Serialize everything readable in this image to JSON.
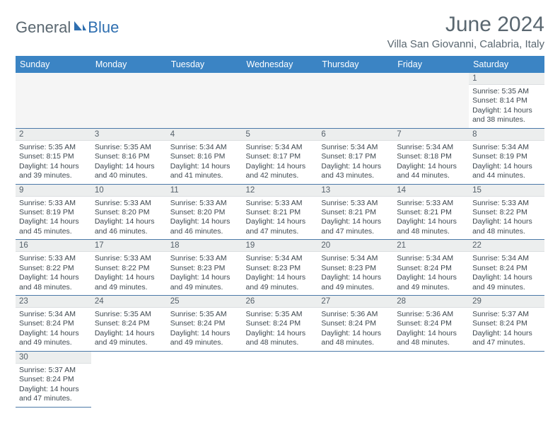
{
  "logo": {
    "part1": "General",
    "part2": "Blue"
  },
  "header": {
    "title": "June 2024",
    "location": "Villa San Giovanni, Calabria, Italy"
  },
  "colors": {
    "header_bg": "#3b84c4",
    "header_text": "#ffffff",
    "daynum_bg": "#eceeee",
    "daynum_text": "#55606a",
    "body_text": "#3e4850",
    "rule": "#4b79a8",
    "logo_gray": "#5a6770",
    "logo_blue": "#2f6fb0"
  },
  "week_headers": [
    "Sunday",
    "Monday",
    "Tuesday",
    "Wednesday",
    "Thursday",
    "Friday",
    "Saturday"
  ],
  "first_day_slot": 6,
  "days": [
    {
      "n": "1",
      "sunrise": "5:35 AM",
      "sunset": "8:14 PM",
      "daylight": "14 hours and 38 minutes."
    },
    {
      "n": "2",
      "sunrise": "5:35 AM",
      "sunset": "8:15 PM",
      "daylight": "14 hours and 39 minutes."
    },
    {
      "n": "3",
      "sunrise": "5:35 AM",
      "sunset": "8:16 PM",
      "daylight": "14 hours and 40 minutes."
    },
    {
      "n": "4",
      "sunrise": "5:34 AM",
      "sunset": "8:16 PM",
      "daylight": "14 hours and 41 minutes."
    },
    {
      "n": "5",
      "sunrise": "5:34 AM",
      "sunset": "8:17 PM",
      "daylight": "14 hours and 42 minutes."
    },
    {
      "n": "6",
      "sunrise": "5:34 AM",
      "sunset": "8:17 PM",
      "daylight": "14 hours and 43 minutes."
    },
    {
      "n": "7",
      "sunrise": "5:34 AM",
      "sunset": "8:18 PM",
      "daylight": "14 hours and 44 minutes."
    },
    {
      "n": "8",
      "sunrise": "5:34 AM",
      "sunset": "8:19 PM",
      "daylight": "14 hours and 44 minutes."
    },
    {
      "n": "9",
      "sunrise": "5:33 AM",
      "sunset": "8:19 PM",
      "daylight": "14 hours and 45 minutes."
    },
    {
      "n": "10",
      "sunrise": "5:33 AM",
      "sunset": "8:20 PM",
      "daylight": "14 hours and 46 minutes."
    },
    {
      "n": "11",
      "sunrise": "5:33 AM",
      "sunset": "8:20 PM",
      "daylight": "14 hours and 46 minutes."
    },
    {
      "n": "12",
      "sunrise": "5:33 AM",
      "sunset": "8:21 PM",
      "daylight": "14 hours and 47 minutes."
    },
    {
      "n": "13",
      "sunrise": "5:33 AM",
      "sunset": "8:21 PM",
      "daylight": "14 hours and 47 minutes."
    },
    {
      "n": "14",
      "sunrise": "5:33 AM",
      "sunset": "8:21 PM",
      "daylight": "14 hours and 48 minutes."
    },
    {
      "n": "15",
      "sunrise": "5:33 AM",
      "sunset": "8:22 PM",
      "daylight": "14 hours and 48 minutes."
    },
    {
      "n": "16",
      "sunrise": "5:33 AM",
      "sunset": "8:22 PM",
      "daylight": "14 hours and 48 minutes."
    },
    {
      "n": "17",
      "sunrise": "5:33 AM",
      "sunset": "8:22 PM",
      "daylight": "14 hours and 49 minutes."
    },
    {
      "n": "18",
      "sunrise": "5:33 AM",
      "sunset": "8:23 PM",
      "daylight": "14 hours and 49 minutes."
    },
    {
      "n": "19",
      "sunrise": "5:34 AM",
      "sunset": "8:23 PM",
      "daylight": "14 hours and 49 minutes."
    },
    {
      "n": "20",
      "sunrise": "5:34 AM",
      "sunset": "8:23 PM",
      "daylight": "14 hours and 49 minutes."
    },
    {
      "n": "21",
      "sunrise": "5:34 AM",
      "sunset": "8:24 PM",
      "daylight": "14 hours and 49 minutes."
    },
    {
      "n": "22",
      "sunrise": "5:34 AM",
      "sunset": "8:24 PM",
      "daylight": "14 hours and 49 minutes."
    },
    {
      "n": "23",
      "sunrise": "5:34 AM",
      "sunset": "8:24 PM",
      "daylight": "14 hours and 49 minutes."
    },
    {
      "n": "24",
      "sunrise": "5:35 AM",
      "sunset": "8:24 PM",
      "daylight": "14 hours and 49 minutes."
    },
    {
      "n": "25",
      "sunrise": "5:35 AM",
      "sunset": "8:24 PM",
      "daylight": "14 hours and 49 minutes."
    },
    {
      "n": "26",
      "sunrise": "5:35 AM",
      "sunset": "8:24 PM",
      "daylight": "14 hours and 48 minutes."
    },
    {
      "n": "27",
      "sunrise": "5:36 AM",
      "sunset": "8:24 PM",
      "daylight": "14 hours and 48 minutes."
    },
    {
      "n": "28",
      "sunrise": "5:36 AM",
      "sunset": "8:24 PM",
      "daylight": "14 hours and 48 minutes."
    },
    {
      "n": "29",
      "sunrise": "5:37 AM",
      "sunset": "8:24 PM",
      "daylight": "14 hours and 47 minutes."
    },
    {
      "n": "30",
      "sunrise": "5:37 AM",
      "sunset": "8:24 PM",
      "daylight": "14 hours and 47 minutes."
    }
  ],
  "labels": {
    "sunrise": "Sunrise: ",
    "sunset": "Sunset: ",
    "daylight": "Daylight: "
  }
}
